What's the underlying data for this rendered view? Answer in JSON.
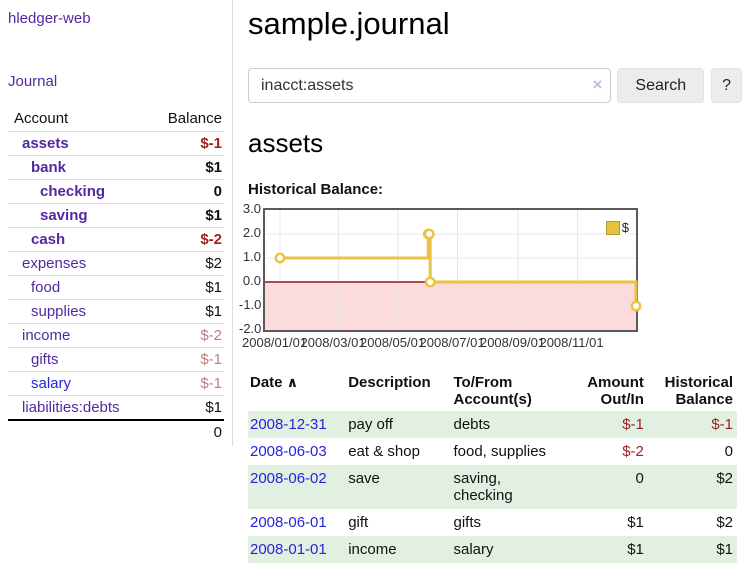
{
  "sidebar": {
    "app_title": "hledger-web",
    "journal_link": "Journal",
    "accounts": {
      "header_account": "Account",
      "header_balance": "Balance",
      "rows": [
        {
          "name": "assets",
          "level": 0,
          "bold": true,
          "color": "purple",
          "balance": "$-1",
          "balance_style": "strong-neg"
        },
        {
          "name": "bank",
          "level": 1,
          "bold": true,
          "color": "purple",
          "balance": "$1",
          "balance_style": "strong"
        },
        {
          "name": "checking",
          "level": 2,
          "bold": true,
          "color": "purple",
          "balance": "0",
          "balance_style": "strong"
        },
        {
          "name": "saving",
          "level": 2,
          "bold": true,
          "color": "purple",
          "balance": "$1",
          "balance_style": "strong"
        },
        {
          "name": "cash",
          "level": 1,
          "bold": true,
          "color": "purple",
          "balance": "$-2",
          "balance_style": "strong-neg"
        },
        {
          "name": "expenses",
          "level": 0,
          "bold": false,
          "color": "purple",
          "balance": "$2",
          "balance_style": "plain"
        },
        {
          "name": "food",
          "level": 1,
          "bold": false,
          "color": "purple",
          "balance": "$1",
          "balance_style": "plain"
        },
        {
          "name": "supplies",
          "level": 1,
          "bold": false,
          "color": "purple",
          "balance": "$1",
          "balance_style": "plain"
        },
        {
          "name": "income",
          "level": 0,
          "bold": false,
          "color": "purple",
          "balance": "$-2",
          "balance_style": "soft-neg"
        },
        {
          "name": "gifts",
          "level": 1,
          "bold": false,
          "color": "purple",
          "balance": "$-1",
          "balance_style": "soft-neg"
        },
        {
          "name": "salary",
          "level": 1,
          "bold": false,
          "color": "blue",
          "balance": "$-1",
          "balance_style": "soft-neg"
        },
        {
          "name": "liabilities:debts",
          "level": 0,
          "bold": false,
          "color": "purple",
          "balance": "$1",
          "balance_style": "plain"
        }
      ],
      "total": "0"
    }
  },
  "main": {
    "title": "sample.journal",
    "search": {
      "value": "inacct:assets",
      "clear_icon": "×",
      "button_label": "Search",
      "help_label": "?"
    },
    "account_heading": "assets",
    "chart_heading": "Historical Balance:",
    "register": {
      "headers": {
        "date": "Date",
        "sort_indicator": "∧",
        "description": "Description",
        "accounts": "To/From Account(s)",
        "amount": "Amount Out/In",
        "balance": "Historical Balance"
      },
      "rows": [
        {
          "date": "2008-12-31",
          "description": "pay off",
          "accounts": "debts",
          "amount": "$-1",
          "amount_neg": true,
          "balance": "$-1",
          "balance_neg": true
        },
        {
          "date": "2008-06-03",
          "description": "eat & shop",
          "accounts": "food, supplies",
          "amount": "$-2",
          "amount_neg": true,
          "balance": "0",
          "balance_neg": false
        },
        {
          "date": "2008-06-02",
          "description": "save",
          "accounts": "saving, checking",
          "amount": "0",
          "amount_neg": false,
          "balance": "$2",
          "balance_neg": false
        },
        {
          "date": "2008-06-01",
          "description": "gift",
          "accounts": "gifts",
          "amount": "$1",
          "amount_neg": false,
          "balance": "$2",
          "balance_neg": false
        },
        {
          "date": "2008-01-01",
          "description": "income",
          "accounts": "salary",
          "amount": "$1",
          "amount_neg": false,
          "balance": "$1",
          "balance_neg": false
        }
      ]
    }
  },
  "chart_data": {
    "type": "line",
    "step": true,
    "title": "Historical Balance",
    "legend": [
      {
        "label": "$",
        "color": "#edc240"
      }
    ],
    "x_start": "2008/01/01",
    "x_end": "2008/12/31",
    "series": [
      {
        "name": "$",
        "points": [
          [
            "2008/01/01",
            1
          ],
          [
            "2008/06/01",
            2
          ],
          [
            "2008/06/02",
            2
          ],
          [
            "2008/06/03",
            0
          ],
          [
            "2008/12/31",
            -1
          ]
        ]
      }
    ],
    "xticks": [
      "2008/01/01",
      "2008/03/01",
      "2008/05/01",
      "2008/07/01",
      "2008/09/01",
      "2008/11/01"
    ],
    "yticks": [
      "3.0",
      "2.0",
      "1.0",
      "0.0",
      "-1.0",
      "-2.0"
    ],
    "ylim": [
      -2,
      3
    ],
    "grid": true,
    "legend_position": "top-right",
    "colors": {
      "line": "#edc240",
      "marker_fill": "#ffffff",
      "negative_region": "#fbdbdb",
      "zero_line": "#8c1717",
      "grid": "#e7e7e7",
      "border": "#5a5a5a"
    }
  }
}
